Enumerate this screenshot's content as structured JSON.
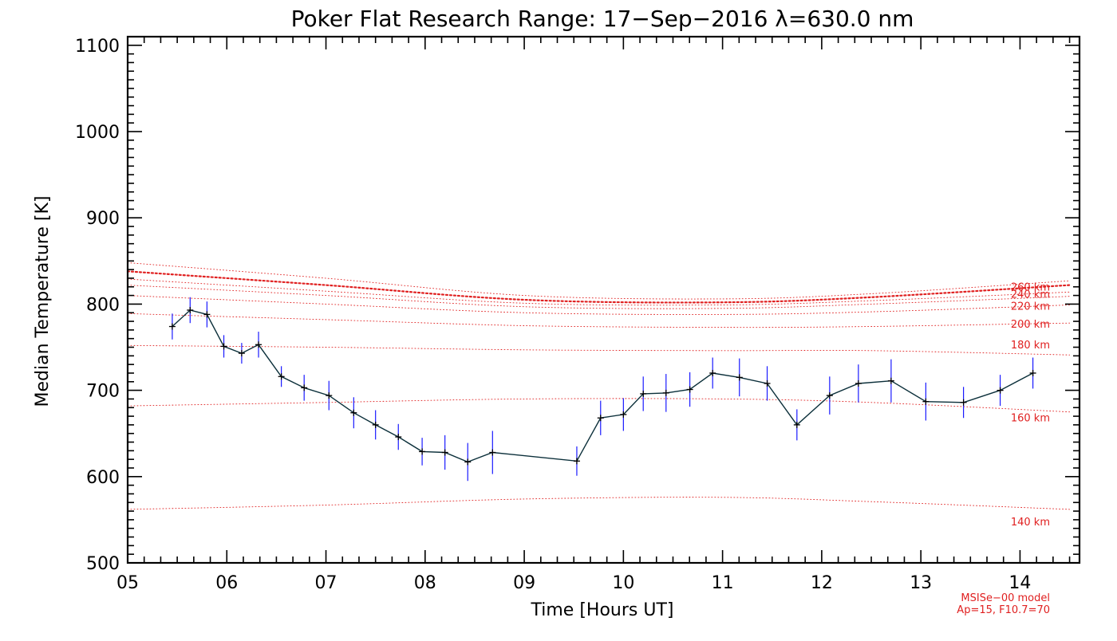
{
  "chart_data": {
    "type": "line",
    "title": "Poker Flat Research Range: 17−Sep−2016 λ=630.0 nm",
    "xlabel": "Time [Hours UT]",
    "ylabel": "Median Temperature [K]",
    "xlim": [
      5.0,
      14.6
    ],
    "ylim": [
      500,
      1110
    ],
    "x_tick_values": [
      5,
      6,
      7,
      8,
      9,
      10,
      11,
      12,
      13,
      14
    ],
    "x_tick_labels": [
      "05",
      "06",
      "07",
      "08",
      "09",
      "10",
      "11",
      "12",
      "13",
      "14"
    ],
    "y_tick_values": [
      500,
      600,
      700,
      800,
      900,
      1000,
      1100
    ],
    "y_tick_labels": [
      "500",
      "600",
      "700",
      "800",
      "900",
      "1000",
      "1100"
    ],
    "grid": false,
    "colors": {
      "measurement_line": "#0b2f3a",
      "error_bar": "#1a1aff",
      "model": "#e02020"
    },
    "series": [
      {
        "x": [
          5.45,
          5.63,
          5.8,
          5.97,
          6.15,
          6.32,
          6.55,
          6.78,
          7.03,
          7.28,
          7.5,
          7.73,
          7.97,
          8.2,
          8.43,
          8.68,
          9.53,
          9.77,
          10.0,
          10.2,
          10.43,
          10.67,
          10.9,
          11.17,
          11.45,
          11.75,
          12.08,
          12.37,
          12.7,
          13.05,
          13.43,
          13.8,
          14.13
        ],
        "y": [
          774,
          793,
          788,
          751,
          743,
          753,
          716,
          703,
          694,
          674,
          660,
          646,
          629,
          628,
          617,
          628,
          618,
          668,
          672,
          696,
          697,
          701,
          720,
          715,
          708,
          660,
          694,
          708,
          711,
          687,
          686,
          700,
          720
        ],
        "yerr": [
          15,
          15,
          15,
          13,
          12,
          15,
          12,
          15,
          17,
          18,
          17,
          15,
          16,
          20,
          22,
          25,
          17,
          20,
          19,
          20,
          22,
          20,
          18,
          22,
          20,
          18,
          22,
          22,
          25,
          22,
          18,
          18,
          18
        ]
      }
    ],
    "model_curves": [
      {
        "name": "140 km",
        "x": [
          5.0,
          7.0,
          9.0,
          11.0,
          12.5,
          14.5
        ],
        "y": [
          562,
          567,
          574,
          576,
          571,
          562
        ]
      },
      {
        "name": "160 km",
        "x": [
          5.0,
          7.0,
          9.0,
          11.0,
          12.5,
          14.5
        ],
        "y": [
          682,
          686,
          690,
          690,
          686,
          675
        ]
      },
      {
        "name": "180 km",
        "x": [
          5.0,
          7.0,
          9.0,
          11.0,
          12.5,
          14.5
        ],
        "y": [
          752,
          750,
          747,
          746,
          746,
          741
        ]
      },
      {
        "name": "200 km",
        "x": [
          5.0,
          7.0,
          9.0,
          11.0,
          12.5,
          14.5
        ],
        "y": [
          789,
          782,
          775,
          773,
          774,
          778
        ]
      },
      {
        "name": "220 km",
        "x": [
          5.0,
          7.0,
          9.0,
          11.0,
          12.5,
          14.5
        ],
        "y": [
          810,
          800,
          790,
          788,
          791,
          799
        ]
      },
      {
        "name": "240 km",
        "x": [
          5.0,
          7.0,
          9.0,
          11.0,
          12.5,
          14.5
        ],
        "y": [
          822,
          810,
          797,
          795,
          800,
          809
        ]
      },
      {
        "name": "260 km",
        "x": [
          5.0,
          7.0,
          9.0,
          11.0,
          12.5,
          14.5
        ],
        "y": [
          829,
          815,
          801,
          799,
          804,
          814
        ]
      },
      {
        "name": "",
        "x": [
          5.0,
          7.0,
          9.0,
          11.0,
          12.5,
          14.5
        ],
        "y": [
          838,
          822,
          805,
          802,
          808,
          822
        ]
      },
      {
        "name": "",
        "x": [
          5.0,
          7.0,
          9.0,
          11.0,
          12.5,
          14.5
        ],
        "y": [
          848,
          830,
          810,
          806,
          812,
          827
        ]
      }
    ],
    "model_label_lines": [
      "MSISe−00 model",
      "Ap=15, F10.7=70"
    ]
  }
}
